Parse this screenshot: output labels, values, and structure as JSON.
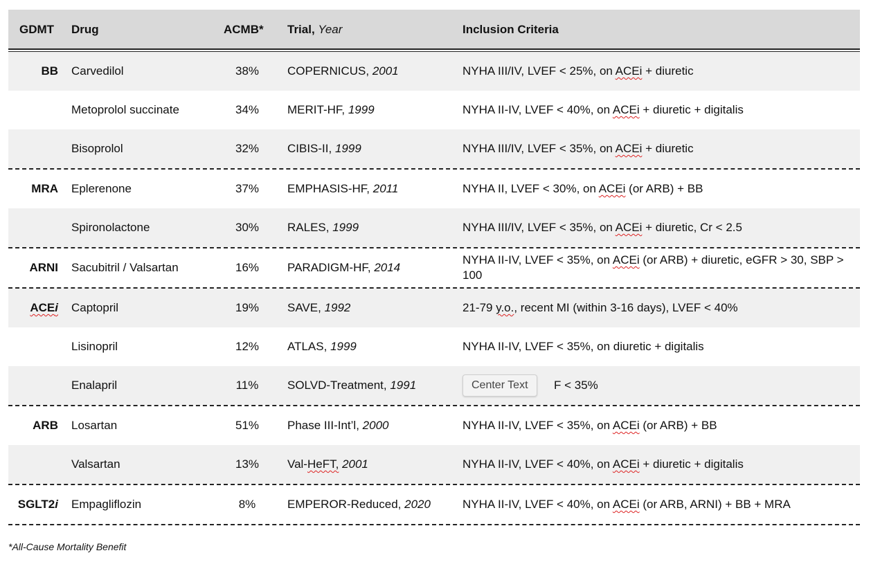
{
  "header": {
    "gdmt": "GDMT",
    "drug": "Drug",
    "acmb": "ACMB*",
    "trial": "Trial,",
    "year": "Year",
    "inclusion": "Inclusion Criteria"
  },
  "rows": [
    {
      "gdmt": "BB",
      "drug": "Carvedilol",
      "acmb": "38%",
      "trial": "COPERNICUS,",
      "year": "2001",
      "incl_pre": "NYHA III/IV, LVEF < 25%, on ",
      "incl_acei": "ACEi",
      "incl_post": " + diuretic"
    },
    {
      "gdmt": "",
      "drug": "Metoprolol succinate",
      "acmb": "34%",
      "trial": "MERIT-HF,",
      "year": "1999",
      "incl_pre": "NYHA II-IV, LVEF < 40%, on ",
      "incl_acei": "ACEi",
      "incl_post": " + diuretic + digitalis"
    },
    {
      "gdmt": "",
      "drug": "Bisoprolol",
      "acmb": "32%",
      "trial": "CIBIS-II,",
      "year": "1999",
      "incl_pre": "NYHA III/IV, LVEF < 35%, on ",
      "incl_acei": "ACEi",
      "incl_post": " + diuretic"
    },
    {
      "gdmt": "MRA",
      "drug": "Eplerenone",
      "acmb": "37%",
      "trial": "EMPHASIS-HF,",
      "year": "2011",
      "incl_pre": "NYHA II, LVEF < 30%, on ",
      "incl_acei": "ACEi",
      "incl_post": " (or ARB) + BB"
    },
    {
      "gdmt": "",
      "drug": "Spironolactone",
      "acmb": "30%",
      "trial": "RALES,",
      "year": "1999",
      "incl_pre": "NYHA III/IV, LVEF < 35%, on ",
      "incl_acei": "ACEi",
      "incl_post": " + diuretic, Cr < 2.5"
    },
    {
      "gdmt": "ARNI",
      "drug": "Sacubitril / Valsartan",
      "acmb": "16%",
      "trial": "PARADIGM-HF,",
      "year": "2014",
      "incl_pre": "NYHA II-IV, LVEF < 35%, on ",
      "incl_acei": "ACEi",
      "incl_post": " (or ARB) + diuretic, eGFR > 30, SBP > 100"
    },
    {
      "gdmt": "ACE",
      "gdmt_it": "i",
      "drug": "Captopril",
      "acmb": "19%",
      "trial": "SAVE,",
      "year": "1992",
      "incl_pre": "21-79 ",
      "incl_acei": "y.o.",
      "incl_post": ", recent MI (within 3-16 days), LVEF < 40%"
    },
    {
      "gdmt": "",
      "drug": "Lisinopril",
      "acmb": "12%",
      "trial": "ATLAS,",
      "year": "1999",
      "incl_pre": "NYHA II-IV, LVEF < 35%, on diuretic + digitalis",
      "incl_acei": "",
      "incl_post": ""
    },
    {
      "gdmt": "",
      "drug": "Enalapril",
      "acmb": "11%",
      "trial": "SOLVD-Treatment,",
      "year": "1991",
      "incl_pre": "",
      "incl_acei": "",
      "incl_post": "F < 35%"
    },
    {
      "gdmt": "ARB",
      "drug": "Losartan",
      "acmb": "51%",
      "trial": "Phase III-Int’l,",
      "year": "2000",
      "incl_pre": "NYHA II-IV, LVEF < 35%, on ",
      "incl_acei": "ACEi",
      "incl_post": " (or ARB) + BB"
    },
    {
      "gdmt": "",
      "drug": "Valsartan",
      "acmb": "13%",
      "trial_pre": "Val-",
      "trial": "HeFT,",
      "year": "2001",
      "incl_pre": "NYHA II-IV, LVEF < 40%, on ",
      "incl_acei": "ACEi",
      "incl_post": " + diuretic + digitalis"
    },
    {
      "gdmt": "SGLT2",
      "gdmt_it": "i",
      "drug": "Empagliflozin",
      "acmb": "8%",
      "trial": "EMPEROR-Reduced,",
      "year": "2020",
      "incl_pre": "NYHA II-IV, LVEF < 40%, on ",
      "incl_acei": "ACEi",
      "incl_post": " (or ARB, ARNI) + BB + MRA"
    }
  ],
  "tooltip": "Center Text",
  "footnote": "*All-Cause Mortality Benefit"
}
